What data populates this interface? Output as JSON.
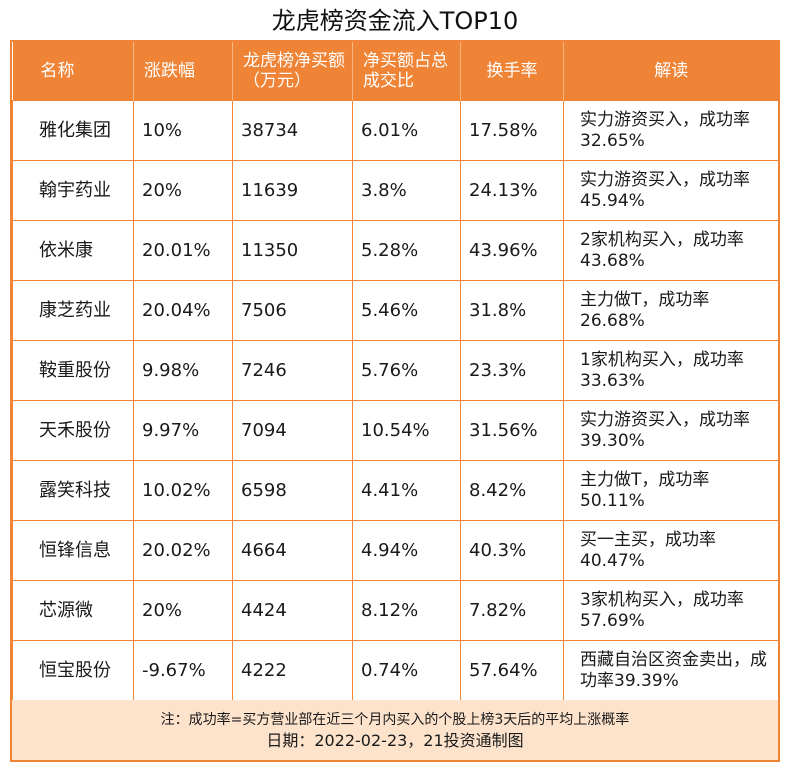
{
  "title": "龙虎榜资金流入TOP10",
  "accent_color": "#ef8436",
  "footer_bg_color": "#fde3cc",
  "headers": {
    "name": "名称",
    "change": "涨跌幅",
    "net_buy": "龙虎榜净买额（万元）",
    "net_buy_ratio": "净买额占总成交比",
    "turnover": "换手率",
    "interpretation": "解读"
  },
  "rows": [
    {
      "name": "雅化集团",
      "change": "10%",
      "net_buy": "38734",
      "ratio": "6.01%",
      "turnover": "17.58%",
      "desc": "实力游资买入，成功率32.65%"
    },
    {
      "name": "翰宇药业",
      "change": "20%",
      "net_buy": "11639",
      "ratio": "3.8%",
      "turnover": "24.13%",
      "desc": "实力游资买入，成功率45.94%"
    },
    {
      "name": "依米康",
      "change": "20.01%",
      "net_buy": "11350",
      "ratio": "5.28%",
      "turnover": "43.96%",
      "desc": "2家机构买入，成功率43.68%"
    },
    {
      "name": "康芝药业",
      "change": "20.04%",
      "net_buy": "7506",
      "ratio": "5.46%",
      "turnover": "31.8%",
      "desc": "主力做T，成功率26.68%"
    },
    {
      "name": "鞍重股份",
      "change": "9.98%",
      "net_buy": "7246",
      "ratio": "5.76%",
      "turnover": "23.3%",
      "desc": "1家机构买入，成功率33.63%"
    },
    {
      "name": "天禾股份",
      "change": "9.97%",
      "net_buy": "7094",
      "ratio": "10.54%",
      "turnover": "31.56%",
      "desc": "实力游资买入，成功率39.30%"
    },
    {
      "name": "露笑科技",
      "change": "10.02%",
      "net_buy": "6598",
      "ratio": "4.41%",
      "turnover": "8.42%",
      "desc": "主力做T，成功率50.11%"
    },
    {
      "name": "恒锋信息",
      "change": "20.02%",
      "net_buy": "4664",
      "ratio": "4.94%",
      "turnover": "40.3%",
      "desc": "买一主买，成功率40.47%"
    },
    {
      "name": "芯源微",
      "change": "20%",
      "net_buy": "4424",
      "ratio": "8.12%",
      "turnover": "7.82%",
      "desc": "3家机构买入，成功率57.69%"
    },
    {
      "name": "恒宝股份",
      "change": "-9.67%",
      "net_buy": "4222",
      "ratio": "0.74%",
      "turnover": "57.64%",
      "desc": "西藏自治区资金卖出，成功率39.39%"
    }
  ],
  "footer": {
    "note": "注：成功率=买方营业部在近三个月内买入的个股上榜3天后的平均上涨概率",
    "date": "日期：2022-02-23，21投资通制图"
  }
}
